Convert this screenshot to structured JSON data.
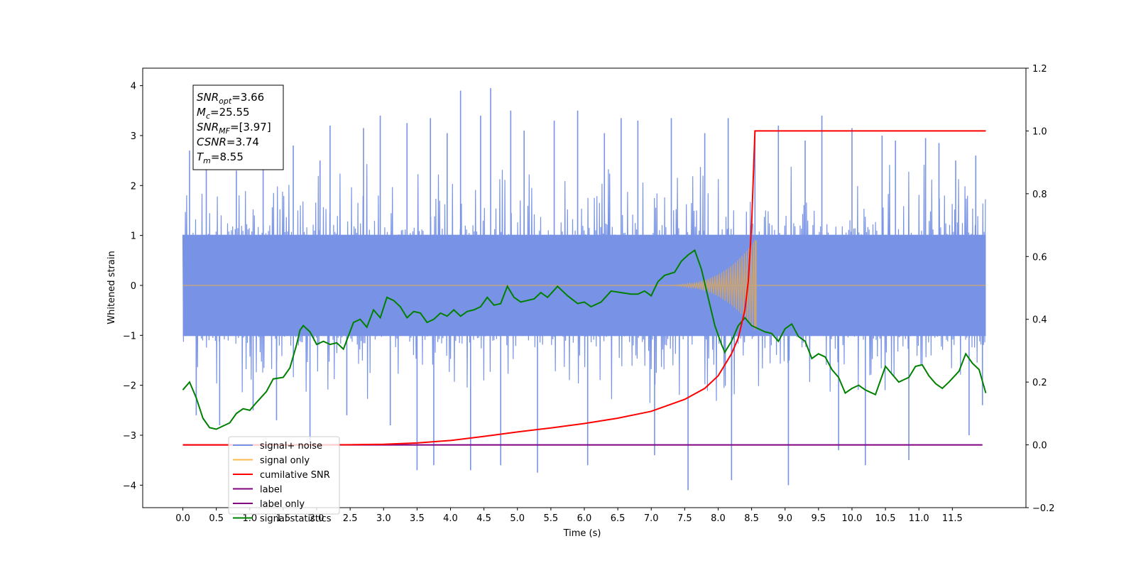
{
  "chart_data": {
    "type": "line",
    "xlabel": "Time (s)",
    "ylabel": "Whitened strain",
    "xlim": [
      -0.6,
      12.6
    ],
    "ylim": [
      -4.45,
      4.35
    ],
    "y2lim": [
      -0.2,
      1.2
    ],
    "x_ticks": [
      0.0,
      0.5,
      1.0,
      1.5,
      2.0,
      2.5,
      3.0,
      3.5,
      4.0,
      4.5,
      5.0,
      5.5,
      6.0,
      6.5,
      7.0,
      7.5,
      8.0,
      8.5,
      9.0,
      9.5,
      10.0,
      10.5,
      11.0,
      11.5
    ],
    "x_tick_labels": [
      "0.0",
      "0.5",
      "1.0",
      "1.5",
      "2.0",
      "2.5",
      "3.0",
      "3.5",
      "4.0",
      "4.5",
      "5.0",
      "5.5",
      "6.0",
      "6.5",
      "7.0",
      "7.5",
      "8.0",
      "8.5",
      "9.0",
      "9.5",
      "10.0",
      "10.5",
      "11.0",
      "11.5"
    ],
    "y_ticks": [
      -4,
      -3,
      -2,
      -1,
      0,
      1,
      2,
      3,
      4
    ],
    "y_tick_labels": [
      "−4",
      "−3",
      "−2",
      "−1",
      "0",
      "1",
      "2",
      "3",
      "4"
    ],
    "y2_ticks": [
      -0.2,
      0.0,
      0.2,
      0.4,
      0.6,
      0.8,
      1.0,
      1.2
    ],
    "y2_tick_labels": [
      "−0.2",
      "0.0",
      "0.2",
      "0.4",
      "0.6",
      "0.8",
      "1.0",
      "1.2"
    ],
    "noise": {
      "x_range": [
        0.0,
        12.0
      ],
      "core_amplitude": 1.3,
      "spikes": [
        [
          0.1,
          2.7
        ],
        [
          0.2,
          -2.6
        ],
        [
          0.35,
          2.4
        ],
        [
          0.55,
          -2.8
        ],
        [
          0.8,
          2.3
        ],
        [
          1.05,
          -2.5
        ],
        [
          1.2,
          3.3
        ],
        [
          1.4,
          -2.7
        ],
        [
          1.65,
          2.8
        ],
        [
          1.9,
          -3.15
        ],
        [
          2.05,
          2.5
        ],
        [
          2.2,
          3.2
        ],
        [
          2.45,
          -2.6
        ],
        [
          2.7,
          3.15
        ],
        [
          2.95,
          3.4
        ],
        [
          3.1,
          -2.8
        ],
        [
          3.35,
          3.25
        ],
        [
          3.5,
          -3.7
        ],
        [
          3.7,
          3.35
        ],
        [
          3.75,
          -3.6
        ],
        [
          3.95,
          3.05
        ],
        [
          4.15,
          3.9
        ],
        [
          4.3,
          -3.7
        ],
        [
          4.45,
          3.4
        ],
        [
          4.6,
          3.95
        ],
        [
          4.75,
          -3.6
        ],
        [
          4.9,
          3.5
        ],
        [
          5.1,
          3.1
        ],
        [
          5.3,
          -3.75
        ],
        [
          5.55,
          3.3
        ],
        [
          5.9,
          3.5
        ],
        [
          6.05,
          -3.6
        ],
        [
          6.3,
          3.05
        ],
        [
          6.55,
          3.35
        ],
        [
          6.8,
          3.3
        ],
        [
          7.05,
          -3.4
        ],
        [
          7.3,
          3.35
        ],
        [
          7.55,
          -4.1
        ],
        [
          7.8,
          3.05
        ],
        [
          8.15,
          3.35
        ],
        [
          8.2,
          -3.9
        ],
        [
          8.55,
          3.1
        ],
        [
          8.9,
          3.2
        ],
        [
          9.05,
          -4.0
        ],
        [
          9.3,
          2.9
        ],
        [
          9.55,
          3.4
        ],
        [
          9.8,
          -3.3
        ],
        [
          10.0,
          3.15
        ],
        [
          10.2,
          -3.6
        ],
        [
          10.45,
          3.0
        ],
        [
          10.65,
          2.9
        ],
        [
          10.85,
          -3.5
        ],
        [
          11.1,
          2.95
        ],
        [
          11.3,
          2.85
        ],
        [
          11.55,
          2.5
        ],
        [
          11.75,
          -3.0
        ],
        [
          11.85,
          2.6
        ],
        [
          11.95,
          -2.4
        ]
      ]
    },
    "series": [
      {
        "name": "signal+ noise",
        "axis": "left",
        "color": "#7893e6"
      },
      {
        "name": "signal only",
        "axis": "left",
        "color": "#c8a478",
        "chirp": {
          "x_range": [
            0.0,
            8.55
          ],
          "merger_time": 8.55,
          "peak_amplitude": 0.9,
          "visible_from": 7.0,
          "ringdown_x": 8.56,
          "ringdown_amplitude": -0.85
        }
      },
      {
        "name": "cumilative SNR",
        "axis": "right",
        "color": "#ff0000",
        "points": [
          [
            0.0,
            0.0
          ],
          [
            1.0,
            0.0
          ],
          [
            2.0,
            0.0
          ],
          [
            2.5,
            0.0005
          ],
          [
            3.0,
            0.002
          ],
          [
            3.5,
            0.006
          ],
          [
            4.0,
            0.014
          ],
          [
            4.5,
            0.027
          ],
          [
            5.0,
            0.041
          ],
          [
            5.5,
            0.054
          ],
          [
            6.0,
            0.068
          ],
          [
            6.5,
            0.085
          ],
          [
            7.0,
            0.107
          ],
          [
            7.5,
            0.145
          ],
          [
            7.8,
            0.18
          ],
          [
            8.0,
            0.22
          ],
          [
            8.2,
            0.29
          ],
          [
            8.3,
            0.34
          ],
          [
            8.4,
            0.43
          ],
          [
            8.45,
            0.52
          ],
          [
            8.5,
            0.7
          ],
          [
            8.55,
            1.0
          ],
          [
            12.0,
            1.0
          ]
        ]
      },
      {
        "name": "label",
        "axis": "right",
        "color": "#800080",
        "points": [
          [
            0.0,
            0.0
          ],
          [
            11.95,
            0.0
          ]
        ]
      },
      {
        "name": "label only",
        "axis": "right",
        "color": "#800080",
        "points": []
      },
      {
        "name": "signal statistics",
        "axis": "right",
        "color": "#008000",
        "points": [
          [
            0.0,
            0.175
          ],
          [
            0.1,
            0.2
          ],
          [
            0.2,
            0.15
          ],
          [
            0.3,
            0.085
          ],
          [
            0.4,
            0.055
          ],
          [
            0.5,
            0.05
          ],
          [
            0.6,
            0.06
          ],
          [
            0.7,
            0.07
          ],
          [
            0.8,
            0.1
          ],
          [
            0.9,
            0.115
          ],
          [
            1.0,
            0.11
          ],
          [
            1.1,
            0.135
          ],
          [
            1.25,
            0.17
          ],
          [
            1.35,
            0.21
          ],
          [
            1.5,
            0.215
          ],
          [
            1.6,
            0.245
          ],
          [
            1.7,
            0.32
          ],
          [
            1.75,
            0.365
          ],
          [
            1.8,
            0.38
          ],
          [
            1.9,
            0.36
          ],
          [
            2.0,
            0.32
          ],
          [
            2.1,
            0.33
          ],
          [
            2.2,
            0.32
          ],
          [
            2.3,
            0.325
          ],
          [
            2.4,
            0.305
          ],
          [
            2.55,
            0.39
          ],
          [
            2.65,
            0.4
          ],
          [
            2.75,
            0.375
          ],
          [
            2.85,
            0.43
          ],
          [
            2.95,
            0.405
          ],
          [
            3.05,
            0.47
          ],
          [
            3.15,
            0.46
          ],
          [
            3.25,
            0.44
          ],
          [
            3.35,
            0.405
          ],
          [
            3.45,
            0.425
          ],
          [
            3.55,
            0.42
          ],
          [
            3.65,
            0.39
          ],
          [
            3.75,
            0.4
          ],
          [
            3.85,
            0.42
          ],
          [
            3.95,
            0.41
          ],
          [
            4.05,
            0.43
          ],
          [
            4.15,
            0.41
          ],
          [
            4.25,
            0.425
          ],
          [
            4.35,
            0.43
          ],
          [
            4.45,
            0.44
          ],
          [
            4.55,
            0.47
          ],
          [
            4.65,
            0.445
          ],
          [
            4.75,
            0.45
          ],
          [
            4.85,
            0.505
          ],
          [
            4.95,
            0.47
          ],
          [
            5.05,
            0.455
          ],
          [
            5.15,
            0.46
          ],
          [
            5.25,
            0.465
          ],
          [
            5.35,
            0.485
          ],
          [
            5.45,
            0.47
          ],
          [
            5.6,
            0.505
          ],
          [
            5.75,
            0.475
          ],
          [
            5.9,
            0.45
          ],
          [
            6.0,
            0.455
          ],
          [
            6.1,
            0.44
          ],
          [
            6.25,
            0.455
          ],
          [
            6.4,
            0.49
          ],
          [
            6.55,
            0.485
          ],
          [
            6.7,
            0.48
          ],
          [
            6.8,
            0.48
          ],
          [
            6.9,
            0.49
          ],
          [
            7.0,
            0.475
          ],
          [
            7.1,
            0.52
          ],
          [
            7.2,
            0.54
          ],
          [
            7.35,
            0.55
          ],
          [
            7.45,
            0.585
          ],
          [
            7.55,
            0.605
          ],
          [
            7.65,
            0.62
          ],
          [
            7.75,
            0.56
          ],
          [
            7.85,
            0.47
          ],
          [
            7.95,
            0.38
          ],
          [
            8.05,
            0.32
          ],
          [
            8.1,
            0.295
          ],
          [
            8.2,
            0.33
          ],
          [
            8.3,
            0.38
          ],
          [
            8.4,
            0.405
          ],
          [
            8.5,
            0.38
          ],
          [
            8.6,
            0.37
          ],
          [
            8.7,
            0.36
          ],
          [
            8.8,
            0.355
          ],
          [
            8.9,
            0.33
          ],
          [
            9.0,
            0.37
          ],
          [
            9.1,
            0.385
          ],
          [
            9.2,
            0.345
          ],
          [
            9.3,
            0.33
          ],
          [
            9.4,
            0.275
          ],
          [
            9.5,
            0.29
          ],
          [
            9.6,
            0.28
          ],
          [
            9.7,
            0.24
          ],
          [
            9.8,
            0.215
          ],
          [
            9.9,
            0.165
          ],
          [
            10.0,
            0.18
          ],
          [
            10.1,
            0.19
          ],
          [
            10.2,
            0.175
          ],
          [
            10.35,
            0.16
          ],
          [
            10.5,
            0.25
          ],
          [
            10.6,
            0.225
          ],
          [
            10.7,
            0.2
          ],
          [
            10.85,
            0.215
          ],
          [
            10.95,
            0.25
          ],
          [
            11.05,
            0.255
          ],
          [
            11.15,
            0.22
          ],
          [
            11.25,
            0.195
          ],
          [
            11.35,
            0.18
          ],
          [
            11.45,
            0.2
          ],
          [
            11.6,
            0.235
          ],
          [
            11.7,
            0.29
          ],
          [
            11.8,
            0.26
          ],
          [
            11.9,
            0.24
          ],
          [
            12.0,
            0.165
          ]
        ]
      }
    ],
    "annotation": {
      "lines": [
        {
          "base": "SNR",
          "sub": "opt",
          "value": "=3.66"
        },
        {
          "base": "M",
          "sub": "c",
          "value": "=25.55"
        },
        {
          "base": "SNR",
          "sub": "MF",
          "value": "=[3.97]"
        },
        {
          "base": "CSNR",
          "sub": "",
          "value": "=3.74"
        },
        {
          "base": "T",
          "sub": "m",
          "value": "=8.55"
        }
      ]
    },
    "legend": {
      "position": "lower-left",
      "entries": [
        "signal+ noise",
        "signal only",
        "cumilative SNR",
        "label",
        "label only",
        "signal statistics"
      ]
    }
  }
}
